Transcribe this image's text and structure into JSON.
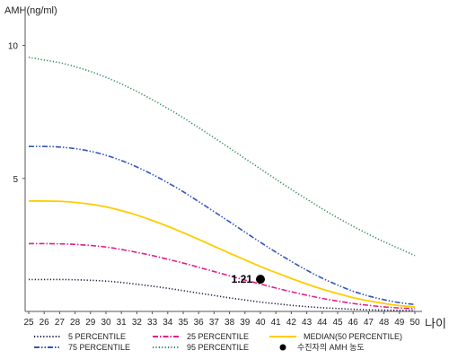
{
  "chart_data": {
    "type": "line",
    "ylabel": "AMH(ng/ml)",
    "xlabel": "나이",
    "x": [
      25,
      26,
      27,
      28,
      29,
      30,
      31,
      32,
      33,
      34,
      35,
      36,
      37,
      38,
      39,
      40,
      41,
      42,
      43,
      44,
      45,
      46,
      47,
      48,
      49,
      50
    ],
    "xlim": [
      25,
      50
    ],
    "ylim": [
      0,
      11.2
    ],
    "y_ticks": [
      5,
      10
    ],
    "grid": false,
    "legend_position": "bottom",
    "series": [
      {
        "name": "5 PERCENTILE",
        "color": "#1a1a3d",
        "dash": "dotted",
        "values": [
          1.2,
          1.2,
          1.2,
          1.19,
          1.17,
          1.14,
          1.09,
          1.02,
          0.95,
          0.87,
          0.78,
          0.69,
          0.6,
          0.51,
          0.43,
          0.35,
          0.29,
          0.23,
          0.18,
          0.14,
          0.11,
          0.08,
          0.06,
          0.05,
          0.04,
          0.03
        ]
      },
      {
        "name": "25 PERCENTILE",
        "color": "#e0218a",
        "dash": "dashdot",
        "values": [
          2.55,
          2.55,
          2.54,
          2.52,
          2.48,
          2.42,
          2.33,
          2.22,
          2.1,
          1.96,
          1.82,
          1.66,
          1.5,
          1.34,
          1.18,
          1.03,
          0.88,
          0.74,
          0.61,
          0.49,
          0.39,
          0.3,
          0.23,
          0.17,
          0.13,
          0.1
        ]
      },
      {
        "name": "MEDIAN(50 PERCENTILE)",
        "color": "#ffcc00",
        "dash": "solid",
        "values": [
          4.15,
          4.15,
          4.14,
          4.1,
          4.03,
          3.93,
          3.79,
          3.62,
          3.42,
          3.2,
          2.96,
          2.71,
          2.45,
          2.19,
          1.94,
          1.69,
          1.46,
          1.24,
          1.03,
          0.84,
          0.67,
          0.52,
          0.4,
          0.3,
          0.22,
          0.17
        ]
      },
      {
        "name": "75 PERCENTILE",
        "color": "#3355bb",
        "dash": "dashdotdot",
        "values": [
          6.2,
          6.2,
          6.18,
          6.12,
          6.02,
          5.87,
          5.67,
          5.43,
          5.15,
          4.84,
          4.5,
          4.13,
          3.75,
          3.37,
          2.98,
          2.6,
          2.23,
          1.88,
          1.55,
          1.25,
          0.99,
          0.76,
          0.58,
          0.44,
          0.33,
          0.26
        ]
      },
      {
        "name": "95 PERCENTILE",
        "color": "#2e8b57",
        "dash": "dotted",
        "values": [
          9.55,
          9.45,
          9.35,
          9.2,
          9.02,
          8.8,
          8.55,
          8.27,
          7.96,
          7.63,
          7.28,
          6.91,
          6.53,
          6.14,
          5.75,
          5.36,
          4.97,
          4.59,
          4.22,
          3.86,
          3.52,
          3.2,
          2.9,
          2.62,
          2.36,
          2.1
        ]
      }
    ],
    "marker": {
      "x": 40,
      "y": 1.21,
      "label": "1.21",
      "color": "#000000",
      "legend_label": "수진자의 AMH 농도"
    }
  }
}
